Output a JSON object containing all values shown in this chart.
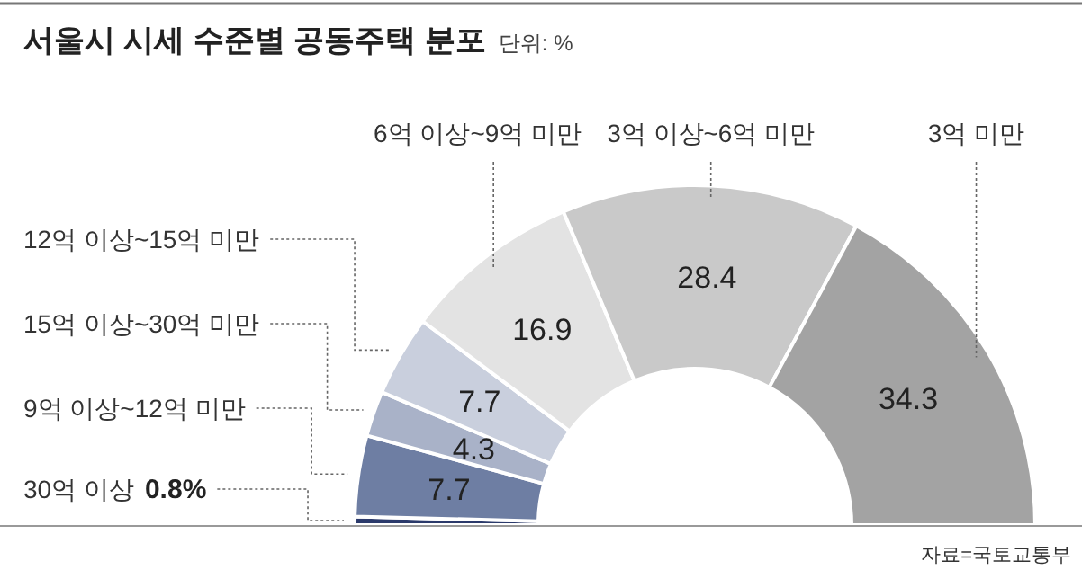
{
  "chart_data": {
    "type": "donut",
    "title": "서울시 시세 수준별 공동주택 분포",
    "subtitle": "단위: %",
    "categories": [
      "30억 이상",
      "9억 이상~12억 미만",
      "15억 이상~30억 미만",
      "12억 이상~15억 미만",
      "6억 이상~9억 미만",
      "3억 이상~6억 미만",
      "3억 미만"
    ],
    "values": [
      0.8,
      7.7,
      4.3,
      7.7,
      16.9,
      28.4,
      34.3
    ],
    "value_labels": [
      "0.8%",
      "7.7",
      "4.3",
      "7.7",
      "16.9",
      "28.4",
      "34.3"
    ],
    "colors": [
      "#2b3a6b",
      "#6e7ea3",
      "#a9b2c8",
      "#c9cfdd",
      "#e3e3e3",
      "#c9c9c9",
      "#a3a3a3"
    ],
    "annotations": [
      "자료=국토교통부"
    ]
  }
}
